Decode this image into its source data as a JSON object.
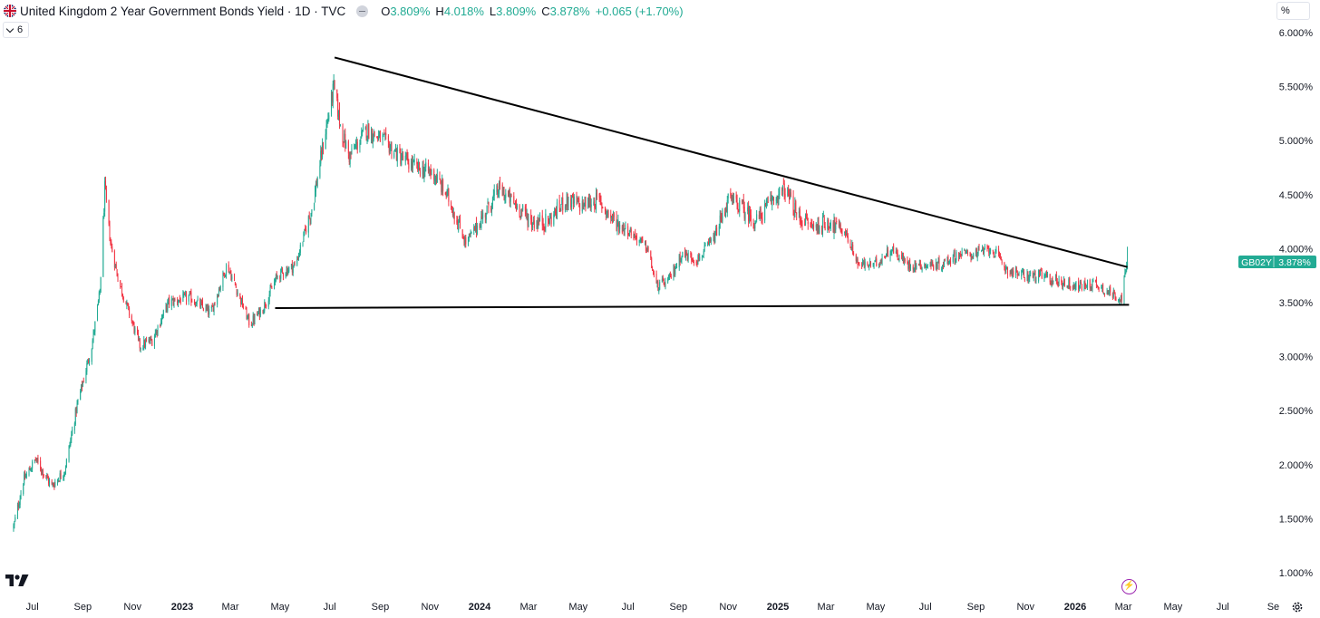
{
  "header": {
    "symbol_title": "United Kingdom 2 Year Government Bonds Yield · 1D · TVC",
    "open_label": "O",
    "open_value": "3.809%",
    "high_label": "H",
    "high_value": "4.018%",
    "low_label": "L",
    "low_value": "3.809%",
    "close_label": "C",
    "close_value": "3.878%",
    "change": "+0.065 (+1.70%)"
  },
  "indicator_toggle": {
    "count": "6"
  },
  "scale_button": {
    "label": "%"
  },
  "price_tag": {
    "symbol": "GB02Y",
    "value": "3.878%"
  },
  "colors": {
    "up": "#22ab94",
    "down": "#f23645",
    "tag": "#22ab94",
    "trendline": "#000000",
    "bolt": "#9c27b0"
  },
  "icons": {
    "logo": "tradingview-logo-icon",
    "bolt": "lightning-bolt-icon",
    "settings": "gear-icon",
    "flag": "uk-flag-icon"
  },
  "chart_data": {
    "type": "candlestick",
    "y_axis": {
      "ticks": [
        "6.000%",
        "5.500%",
        "5.000%",
        "4.500%",
        "4.000%",
        "3.500%",
        "3.000%",
        "2.500%",
        "2.000%",
        "1.500%",
        "1.000%"
      ],
      "range": [
        1.0,
        6.0
      ],
      "unit": "%"
    },
    "x_axis": {
      "ticks": [
        {
          "label": "Jul",
          "date": "2022-07-01"
        },
        {
          "label": "Sep",
          "date": "2022-09-01"
        },
        {
          "label": "Nov",
          "date": "2022-11-01"
        },
        {
          "label": "2023",
          "date": "2023-01-01",
          "bold": true
        },
        {
          "label": "Mar",
          "date": "2023-03-01"
        },
        {
          "label": "May",
          "date": "2023-05-01"
        },
        {
          "label": "Jul",
          "date": "2023-07-01"
        },
        {
          "label": "Sep",
          "date": "2023-09-01"
        },
        {
          "label": "Nov",
          "date": "2023-11-01"
        },
        {
          "label": "2024",
          "date": "2024-01-01",
          "bold": true
        },
        {
          "label": "Mar",
          "date": "2024-03-01"
        },
        {
          "label": "May",
          "date": "2024-05-01"
        },
        {
          "label": "Jul",
          "date": "2024-07-01"
        },
        {
          "label": "Sep",
          "date": "2024-09-01"
        },
        {
          "label": "Nov",
          "date": "2024-11-01"
        },
        {
          "label": "2025",
          "date": "2025-01-01",
          "bold": true
        },
        {
          "label": "Mar",
          "date": "2025-03-01"
        },
        {
          "label": "May",
          "date": "2025-05-01"
        },
        {
          "label": "Jul",
          "date": "2025-07-01"
        },
        {
          "label": "Sep",
          "date": "2025-09-01"
        },
        {
          "label": "Nov",
          "date": "2025-11-01"
        },
        {
          "label": "2026",
          "date": "2026-01-01",
          "bold": true
        },
        {
          "label": "Mar",
          "date": "2026-03-01"
        },
        {
          "label": "May",
          "date": "2026-05-01"
        },
        {
          "label": "Jul",
          "date": "2026-07-01"
        },
        {
          "label": "Se",
          "date": "2026-09-01"
        }
      ]
    },
    "approx_close_path": [
      [
        "2022-06-08",
        1.42
      ],
      [
        "2022-06-20",
        1.85
      ],
      [
        "2022-07-05",
        2.05
      ],
      [
        "2022-07-25",
        1.8
      ],
      [
        "2022-08-10",
        1.95
      ],
      [
        "2022-08-25",
        2.55
      ],
      [
        "2022-09-12",
        3.1
      ],
      [
        "2022-09-22",
        3.6
      ],
      [
        "2022-09-28",
        4.55
      ],
      [
        "2022-10-05",
        4.05
      ],
      [
        "2022-10-15",
        3.7
      ],
      [
        "2022-10-28",
        3.4
      ],
      [
        "2022-11-10",
        3.1
      ],
      [
        "2022-11-25",
        3.15
      ],
      [
        "2022-12-15",
        3.5
      ],
      [
        "2023-01-10",
        3.55
      ],
      [
        "2023-02-05",
        3.4
      ],
      [
        "2023-02-25",
        3.85
      ],
      [
        "2023-03-10",
        3.6
      ],
      [
        "2023-03-25",
        3.3
      ],
      [
        "2023-04-10",
        3.45
      ],
      [
        "2023-04-28",
        3.75
      ],
      [
        "2023-05-20",
        3.85
      ],
      [
        "2023-06-10",
        4.4
      ],
      [
        "2023-06-25",
        5.05
      ],
      [
        "2023-07-06",
        5.5
      ],
      [
        "2023-07-15",
        5.1
      ],
      [
        "2023-07-25",
        4.85
      ],
      [
        "2023-08-15",
        5.1
      ],
      [
        "2023-09-05",
        5.0
      ],
      [
        "2023-09-25",
        4.85
      ],
      [
        "2023-10-15",
        4.75
      ],
      [
        "2023-11-05",
        4.7
      ],
      [
        "2023-11-25",
        4.45
      ],
      [
        "2023-12-15",
        4.05
      ],
      [
        "2024-01-05",
        4.3
      ],
      [
        "2024-01-25",
        4.55
      ],
      [
        "2024-02-15",
        4.4
      ],
      [
        "2024-03-05",
        4.25
      ],
      [
        "2024-03-25",
        4.25
      ],
      [
        "2024-04-15",
        4.45
      ],
      [
        "2024-05-05",
        4.4
      ],
      [
        "2024-05-25",
        4.45
      ],
      [
        "2024-06-15",
        4.25
      ],
      [
        "2024-07-05",
        4.15
      ],
      [
        "2024-07-25",
        4.0
      ],
      [
        "2024-08-05",
        3.65
      ],
      [
        "2024-08-20",
        3.7
      ],
      [
        "2024-09-05",
        3.95
      ],
      [
        "2024-09-25",
        3.9
      ],
      [
        "2024-10-15",
        4.1
      ],
      [
        "2024-11-01",
        4.45
      ],
      [
        "2024-11-15",
        4.4
      ],
      [
        "2024-12-05",
        4.25
      ],
      [
        "2024-12-25",
        4.45
      ],
      [
        "2025-01-10",
        4.55
      ],
      [
        "2025-01-25",
        4.3
      ],
      [
        "2025-02-15",
        4.2
      ],
      [
        "2025-03-05",
        4.25
      ],
      [
        "2025-03-25",
        4.15
      ],
      [
        "2025-04-10",
        3.85
      ],
      [
        "2025-04-30",
        3.85
      ],
      [
        "2025-05-20",
        4.0
      ],
      [
        "2025-06-10",
        3.85
      ],
      [
        "2025-06-30",
        3.85
      ],
      [
        "2025-07-20",
        3.85
      ],
      [
        "2025-08-10",
        3.95
      ],
      [
        "2025-08-30",
        3.95
      ],
      [
        "2025-09-20",
        4.0
      ],
      [
        "2025-10-10",
        3.8
      ],
      [
        "2025-10-30",
        3.75
      ],
      [
        "2025-11-20",
        3.75
      ],
      [
        "2025-12-10",
        3.7
      ],
      [
        "2026-01-05",
        3.65
      ],
      [
        "2026-01-25",
        3.68
      ],
      [
        "2026-02-15",
        3.58
      ],
      [
        "2026-02-27",
        3.55
      ],
      [
        "2026-03-06",
        3.88
      ]
    ],
    "annotations": {
      "descending_trendline": [
        [
          "2023-07-07",
          5.77
        ],
        [
          "2026-03-06",
          3.83
        ]
      ],
      "horizontal_support": [
        [
          "2023-04-25",
          3.45
        ],
        [
          "2026-03-08",
          3.48
        ]
      ]
    },
    "last": {
      "close": 3.878,
      "date": "2026-03-06"
    },
    "grid": false
  }
}
